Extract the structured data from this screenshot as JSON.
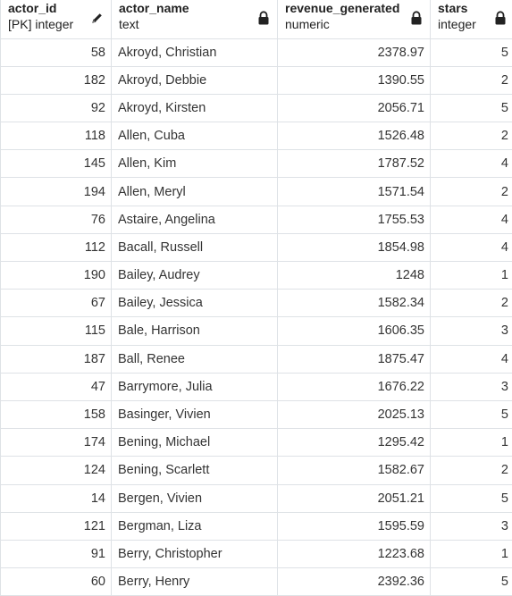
{
  "columns": [
    {
      "name": "actor_id",
      "type": "[PK] integer",
      "icon": "pencil-icon"
    },
    {
      "name": "actor_name",
      "type": "text",
      "icon": "lock-icon"
    },
    {
      "name": "revenue_generated",
      "type": "numeric",
      "icon": "lock-icon"
    },
    {
      "name": "stars",
      "type": "integer",
      "icon": "lock-icon"
    }
  ],
  "rows": [
    [
      "58",
      "Akroyd, Christian",
      "2378.97",
      "5"
    ],
    [
      "182",
      "Akroyd, Debbie",
      "1390.55",
      "2"
    ],
    [
      "92",
      "Akroyd, Kirsten",
      "2056.71",
      "5"
    ],
    [
      "118",
      "Allen, Cuba",
      "1526.48",
      "2"
    ],
    [
      "145",
      "Allen, Kim",
      "1787.52",
      "4"
    ],
    [
      "194",
      "Allen, Meryl",
      "1571.54",
      "2"
    ],
    [
      "76",
      "Astaire, Angelina",
      "1755.53",
      "4"
    ],
    [
      "112",
      "Bacall, Russell",
      "1854.98",
      "4"
    ],
    [
      "190",
      "Bailey, Audrey",
      "1248",
      "1"
    ],
    [
      "67",
      "Bailey, Jessica",
      "1582.34",
      "2"
    ],
    [
      "115",
      "Bale, Harrison",
      "1606.35",
      "3"
    ],
    [
      "187",
      "Ball, Renee",
      "1875.47",
      "4"
    ],
    [
      "47",
      "Barrymore, Julia",
      "1676.22",
      "3"
    ],
    [
      "158",
      "Basinger, Vivien",
      "2025.13",
      "5"
    ],
    [
      "174",
      "Bening, Michael",
      "1295.42",
      "1"
    ],
    [
      "124",
      "Bening, Scarlett",
      "1582.67",
      "2"
    ],
    [
      "14",
      "Bergen, Vivien",
      "2051.21",
      "5"
    ],
    [
      "121",
      "Bergman, Liza",
      "1595.59",
      "3"
    ],
    [
      "91",
      "Berry, Christopher",
      "1223.68",
      "1"
    ],
    [
      "60",
      "Berry, Henry",
      "2392.36",
      "5"
    ]
  ]
}
